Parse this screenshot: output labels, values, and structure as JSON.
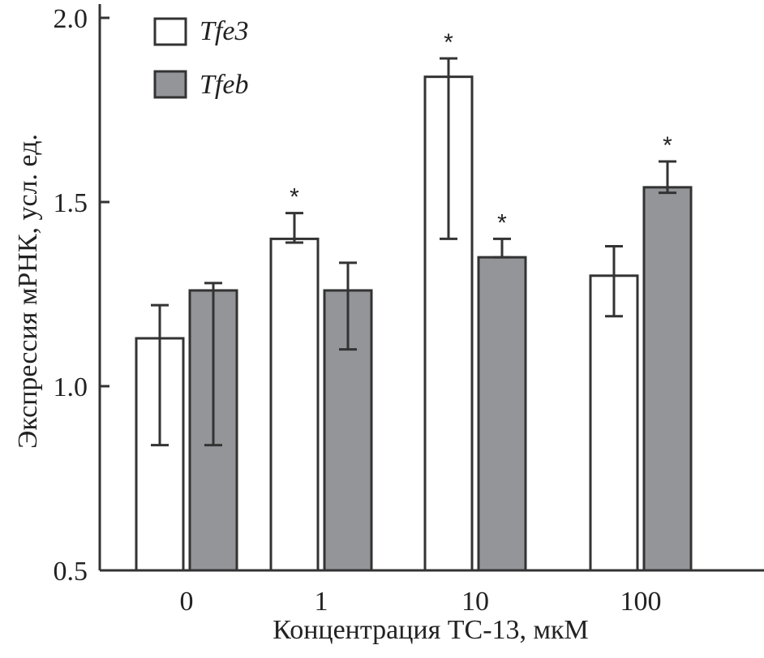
{
  "chart_data": {
    "type": "bar",
    "xlabel": "Концентрация ТС-13, мкМ",
    "ylabel": "Экспрессия мРНК, усл. ед.",
    "categories": [
      "0",
      "1",
      "10",
      "100"
    ],
    "ylim": [
      0.5,
      2.0
    ],
    "yticks": [
      "0.5",
      "1.0",
      "1.5",
      "2.0"
    ],
    "legend_position": "top-left",
    "grid": false,
    "series": [
      {
        "name": "Tfe3",
        "color": "#ffffff",
        "values": [
          1.13,
          1.4,
          1.84,
          1.3
        ],
        "err_upper": [
          1.22,
          1.47,
          1.89,
          1.38
        ],
        "err_lower": [
          0.84,
          1.39,
          1.4,
          1.19
        ],
        "significant": [
          false,
          true,
          true,
          false
        ]
      },
      {
        "name": "Tfeb",
        "color": "#939598",
        "values": [
          1.26,
          1.26,
          1.35,
          1.54
        ],
        "err_upper": [
          1.28,
          1.335,
          1.4,
          1.61
        ],
        "err_lower": [
          0.84,
          1.1,
          1.35,
          1.525
        ],
        "significant": [
          false,
          false,
          true,
          true
        ]
      }
    ],
    "significance_mark": "*"
  }
}
